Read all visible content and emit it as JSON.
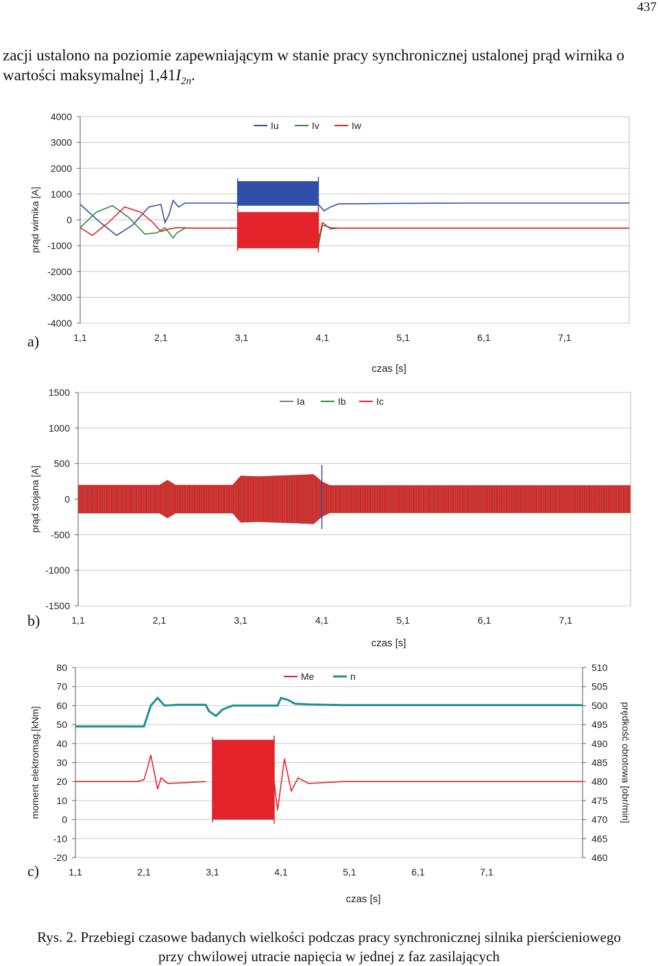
{
  "page_number": "437",
  "intro": {
    "text": "zacji ustalono na poziomie zapewniającym w stanie pracy synchronicznej ustalonej prąd wirnika o wartości maksymalnej 1,41",
    "symbol": "I",
    "subscript": "2n",
    "tail": "."
  },
  "caption": {
    "line1": "Rys. 2. Przebiegi czasowe badanych wielkości podczas pracy synchronicznej silnika pierścieniowego",
    "line2": "przy chwilowej utracie napięcia w jednej z faz zasilających"
  },
  "colors": {
    "blue": "#2f4fa8",
    "green": "#2e8b3a",
    "red": "#e4232b",
    "teal": "#1f8f94",
    "grid": "#c8c8c8"
  },
  "chart_data": [
    {
      "panel_label": "a)",
      "type": "line",
      "xlabel": "czas [s]",
      "ylabel": "prąd wirnika [A]",
      "ylim": [
        -4000,
        4000
      ],
      "yticks": [
        "4000",
        "3000",
        "2000",
        "1000",
        "0",
        "-1000",
        "-2000",
        "-3000",
        "-4000"
      ],
      "xticks": [
        "1,1",
        "2,1",
        "3,1",
        "4,1",
        "5,1",
        "6,1",
        "7,1"
      ],
      "xlim": [
        1.1,
        7.9
      ],
      "legend_position": "top-center",
      "grid": true,
      "series": [
        {
          "name": "Iu",
          "color": "#2f4fa8",
          "points": [
            [
              1.1,
              600
            ],
            [
              1.35,
              -100
            ],
            [
              1.55,
              -600
            ],
            [
              1.75,
              -200
            ],
            [
              1.95,
              500
            ],
            [
              2.1,
              600
            ],
            [
              2.15,
              -100
            ],
            [
              2.2,
              200
            ],
            [
              2.25,
              750
            ],
            [
              2.32,
              500
            ],
            [
              2.4,
              650
            ],
            [
              2.6,
              650
            ],
            [
              2.8,
              650
            ],
            [
              3.0,
              650
            ],
            [
              3.05,
              650
            ]
          ],
          "band": [
            3.05,
            4.05,
            550,
            1500
          ],
          "after": [
            [
              4.05,
              600
            ],
            [
              4.12,
              350
            ],
            [
              4.2,
              500
            ],
            [
              4.3,
              620
            ],
            [
              5.0,
              640
            ],
            [
              6.0,
              650
            ],
            [
              7.0,
              650
            ],
            [
              7.9,
              650
            ]
          ]
        },
        {
          "name": "Iv",
          "color": "#2e8b3a",
          "points": [
            [
              1.1,
              -300
            ],
            [
              1.3,
              300
            ],
            [
              1.5,
              550
            ],
            [
              1.7,
              100
            ],
            [
              1.9,
              -550
            ],
            [
              2.05,
              -500
            ],
            [
              2.15,
              -300
            ],
            [
              2.25,
              -700
            ],
            [
              2.3,
              -500
            ],
            [
              2.4,
              -320
            ],
            [
              2.6,
              -320
            ],
            [
              3.05,
              -320
            ]
          ],
          "band": [
            3.05,
            4.05,
            -1000,
            300
          ],
          "after": [
            [
              4.05,
              -1000
            ],
            [
              4.1,
              -200
            ],
            [
              4.2,
              -300
            ],
            [
              4.3,
              -320
            ],
            [
              7.9,
              -320
            ]
          ]
        },
        {
          "name": "Iw",
          "color": "#e4232b",
          "points": [
            [
              1.1,
              -300
            ],
            [
              1.25,
              -600
            ],
            [
              1.45,
              -100
            ],
            [
              1.65,
              500
            ],
            [
              1.85,
              300
            ],
            [
              2.0,
              -100
            ],
            [
              2.1,
              -450
            ],
            [
              2.2,
              -350
            ],
            [
              2.3,
              -300
            ],
            [
              2.5,
              -320
            ],
            [
              3.05,
              -320
            ]
          ],
          "band": [
            3.05,
            4.05,
            -1100,
            300
          ],
          "after": [
            [
              4.05,
              -800
            ],
            [
              4.1,
              -100
            ],
            [
              4.2,
              -350
            ],
            [
              4.3,
              -320
            ],
            [
              7.9,
              -320
            ]
          ]
        }
      ]
    },
    {
      "panel_label": "b)",
      "type": "line",
      "xlabel": "czas [s]",
      "ylabel": "prąd stojana [A]",
      "ylim": [
        -1500,
        1500
      ],
      "yticks": [
        "1500",
        "1000",
        "500",
        "0",
        "-500",
        "-1000",
        "-1500"
      ],
      "xticks": [
        "1,1",
        "2,1",
        "3,1",
        "4,1",
        "5,1",
        "6,1",
        "7,1"
      ],
      "xlim": [
        1.1,
        7.9
      ],
      "legend_position": "top-center",
      "grid": true,
      "series": [
        {
          "name": "Ia",
          "color": "#7a7a7a"
        },
        {
          "name": "Ib",
          "color": "#2e8b3a"
        },
        {
          "name": "Ic",
          "color": "#e4232b"
        }
      ],
      "envelope": {
        "x": [
          1.1,
          2.1,
          2.2,
          2.3,
          2.4,
          3.0,
          3.1,
          3.3,
          4.0,
          4.1,
          4.2,
          7.9
        ],
        "amplitude": [
          200,
          200,
          270,
          200,
          200,
          200,
          330,
          320,
          350,
          250,
          195,
          195
        ]
      },
      "spike": {
        "x": 4.1,
        "max": 480,
        "min": -420
      }
    },
    {
      "panel_label": "c)",
      "type": "line",
      "xlabel": "czas [s]",
      "ylabel": "moment elektromag.[kNm]",
      "ylabel_right": "prędkość obrotowa [obr/min]",
      "ylim": [
        -20,
        80
      ],
      "ylim_right": [
        460,
        510
      ],
      "yticks": [
        "80",
        "70",
        "60",
        "50",
        "40",
        "30",
        "20",
        "10",
        "0",
        "-10",
        "-20"
      ],
      "yticks_right": [
        "510",
        "505",
        "500",
        "495",
        "490",
        "485",
        "480",
        "475",
        "470",
        "465",
        "460"
      ],
      "xticks": [
        "1,1",
        "2,1",
        "3,1",
        "4,1",
        "5,1",
        "6,1",
        "7,1"
      ],
      "xlim": [
        1.1,
        8.5
      ],
      "legend_position": "top-center",
      "grid": true,
      "series": [
        {
          "name": "Me",
          "color": "#e4232b",
          "points": [
            [
              1.1,
              20
            ],
            [
              2.0,
              20
            ],
            [
              2.1,
              21
            ],
            [
              2.15,
              27
            ],
            [
              2.2,
              34
            ],
            [
              2.25,
              25
            ],
            [
              2.3,
              16
            ],
            [
              2.35,
              22
            ],
            [
              2.45,
              19
            ],
            [
              3.0,
              20
            ]
          ],
          "band": [
            3.1,
            4.0,
            0,
            42
          ],
          "after": [
            [
              4.0,
              20
            ],
            [
              4.05,
              5
            ],
            [
              4.15,
              32
            ],
            [
              4.25,
              15
            ],
            [
              4.35,
              22
            ],
            [
              4.5,
              19
            ],
            [
              5.0,
              20
            ],
            [
              8.5,
              20
            ]
          ]
        },
        {
          "name": "n",
          "color": "#1f8f94",
          "axis": "right",
          "points": [
            [
              1.1,
              494.5
            ],
            [
              2.0,
              494.5
            ],
            [
              2.1,
              494.5
            ],
            [
              2.2,
              500
            ],
            [
              2.3,
              502
            ],
            [
              2.4,
              500
            ],
            [
              2.6,
              500.2
            ],
            [
              3.0,
              500.2
            ],
            [
              3.05,
              498.5
            ],
            [
              3.15,
              497.3
            ],
            [
              3.25,
              499
            ],
            [
              3.4,
              500
            ],
            [
              4.0,
              500
            ],
            [
              4.05,
              500
            ],
            [
              4.1,
              502
            ],
            [
              4.2,
              501.5
            ],
            [
              4.3,
              500.5
            ],
            [
              4.5,
              500.3
            ],
            [
              5.0,
              500.1
            ],
            [
              8.5,
              500.1
            ]
          ]
        }
      ]
    }
  ]
}
